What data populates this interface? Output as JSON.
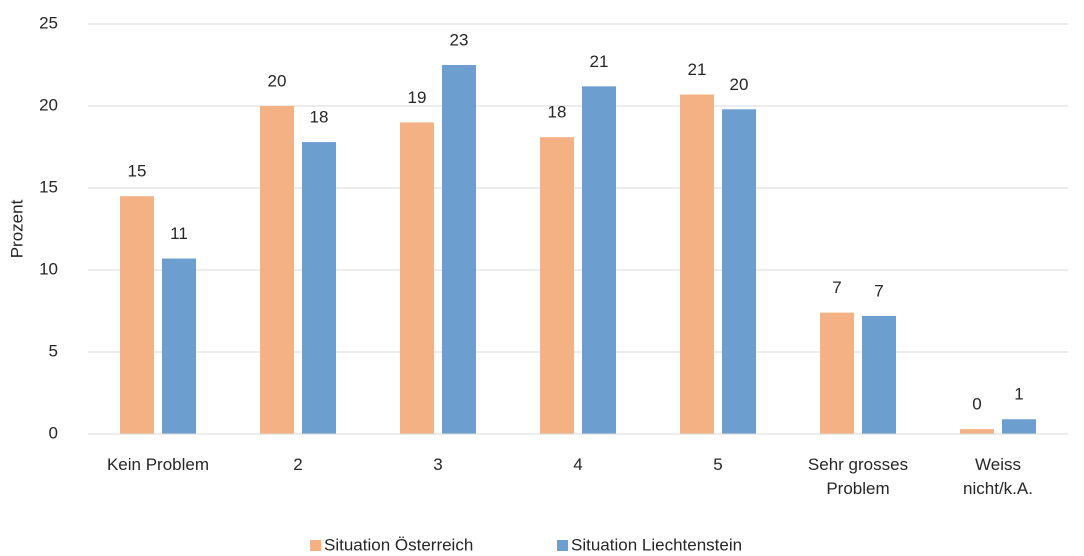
{
  "chart_data": {
    "type": "bar",
    "y_label": "Prozent",
    "categories": [
      "Kein Problem",
      "2",
      "3",
      "4",
      "5",
      "Sehr grosses\nProblem",
      "Weiss\nnicht/k.A."
    ],
    "series": [
      {
        "name": "Situation Österreich",
        "color": "#f4b183",
        "values": [
          14.5,
          20.0,
          19.0,
          18.1,
          20.7,
          7.4,
          0.3
        ],
        "value_labels": [
          "15",
          "20",
          "19",
          "18",
          "21",
          "7",
          "0"
        ]
      },
      {
        "name": "Situation Liechtenstein",
        "color": "#6c9fd0",
        "values": [
          10.7,
          17.8,
          22.5,
          21.2,
          19.8,
          7.2,
          0.9
        ],
        "value_labels": [
          "11",
          "18",
          "23",
          "21",
          "20",
          "7",
          "1"
        ]
      }
    ],
    "ylim": [
      0,
      25
    ],
    "yticks": [
      0,
      5,
      10,
      15,
      20,
      25
    ],
    "grid": true,
    "legend": "bottom"
  }
}
